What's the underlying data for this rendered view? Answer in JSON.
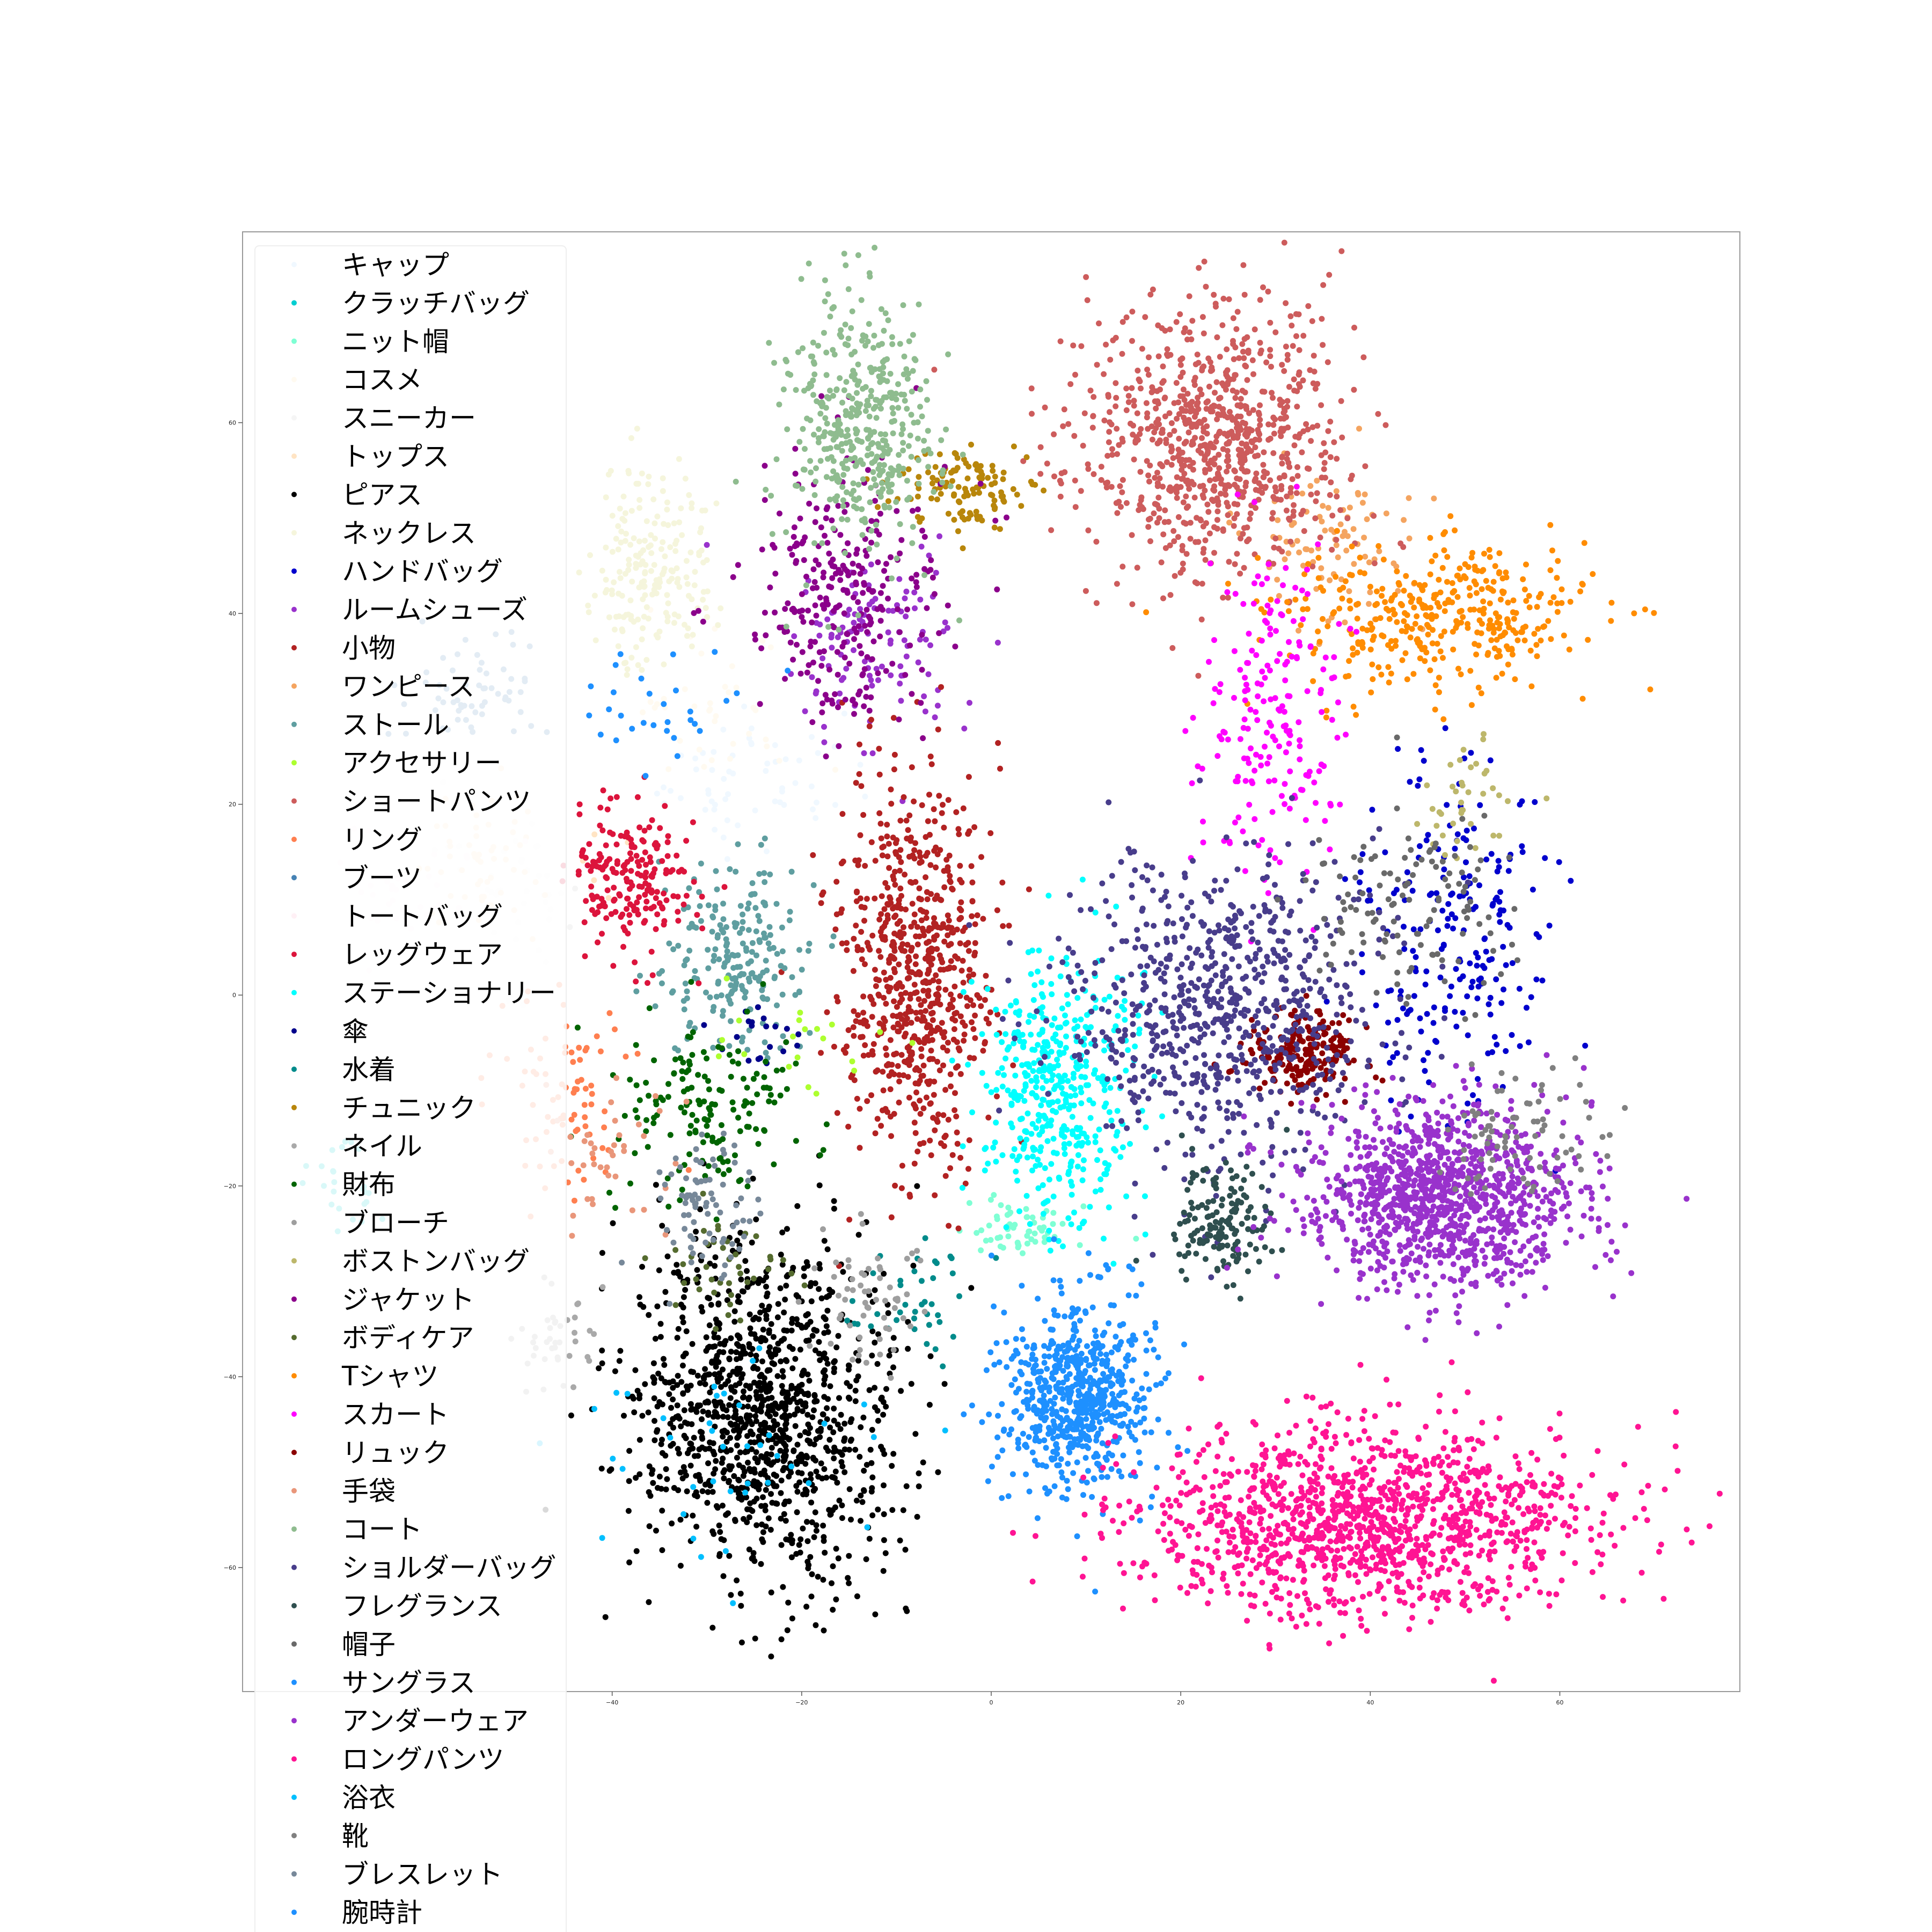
{
  "chart_data": {
    "type": "scatter",
    "title": "",
    "xlabel": "",
    "ylabel": "",
    "xlim": [
      -79,
      79
    ],
    "ylim": [
      -73,
      80
    ],
    "x_ticks": [
      -40,
      -20,
      0,
      20,
      40,
      60
    ],
    "y_ticks": [
      -60,
      -40,
      -20,
      0,
      20,
      40,
      60
    ],
    "x_tick_labels": [
      "−40",
      "−20",
      "0",
      "20",
      "40",
      "60"
    ],
    "y_tick_labels": [
      "−60",
      "−40",
      "−20",
      "0",
      "20",
      "40",
      "60"
    ],
    "grid": false,
    "legend_position": "upper-left",
    "series": [
      {
        "name": "キャップ",
        "color": "#f0f8ff",
        "cx": -25,
        "cy": 22,
        "sx": 6,
        "sy": 4,
        "n": 60
      },
      {
        "name": "クラッチバッグ",
        "color": "#00ced1",
        "cx": -68,
        "cy": -20,
        "sx": 3,
        "sy": 3,
        "n": 25
      },
      {
        "name": "ニット帽",
        "color": "#7fffd4",
        "cx": 3,
        "cy": -24,
        "sx": 3,
        "sy": 1.5,
        "n": 60
      },
      {
        "name": "コスメ",
        "color": "#fffaf0",
        "cx": -30,
        "cy": 30,
        "sx": 5,
        "sy": 5,
        "n": 40
      },
      {
        "name": "スニーカー",
        "color": "#f5f5f5",
        "cx": -50,
        "cy": 10,
        "sx": 4,
        "sy": 4,
        "n": 40
      },
      {
        "name": "トップス",
        "color": "#ffe4c4",
        "cx": -53,
        "cy": 14,
        "sx": 4,
        "sy": 4,
        "n": 60
      },
      {
        "name": "ピアス",
        "color": "#000000",
        "cx": -24,
        "cy": -44,
        "sx": 7,
        "sy": 9,
        "n": 1150
      },
      {
        "name": "ネックレス",
        "color": "#f5f5dc",
        "cx": -36,
        "cy": 45,
        "sx": 3,
        "sy": 5,
        "n": 200
      },
      {
        "name": "ハンドバッグ",
        "color": "#0000cd",
        "cx": 49,
        "cy": 6,
        "sx": 5,
        "sy": 9,
        "n": 220
      },
      {
        "name": "ルームシューズ",
        "color": "#9932cc",
        "cx": -12,
        "cy": 37,
        "sx": 5,
        "sy": 5,
        "n": 120
      },
      {
        "name": "小物",
        "color": "#b22222",
        "cx": -8,
        "cy": 2,
        "sx": 4,
        "sy": 10,
        "n": 700
      },
      {
        "name": "ワンピース",
        "color": "#f4a460",
        "cx": 36,
        "cy": 48,
        "sx": 4,
        "sy": 4,
        "n": 90
      },
      {
        "name": "ストール",
        "color": "#5f9ea0",
        "cx": -27,
        "cy": 4,
        "sx": 4,
        "sy": 5,
        "n": 220
      },
      {
        "name": "アクセサリー",
        "color": "#adff2f",
        "cx": -20,
        "cy": -5,
        "sx": 6,
        "sy": 4,
        "n": 20
      },
      {
        "name": "ショートパンツ",
        "color": "#cd5c5c",
        "cx": 23,
        "cy": 58,
        "sx": 7,
        "sy": 7,
        "n": 850
      },
      {
        "name": "リング",
        "color": "#ff7f50",
        "cx": -45,
        "cy": -10,
        "sx": 3,
        "sy": 6,
        "n": 80
      },
      {
        "name": "ブーツ",
        "color": "#4682b4",
        "cx": -54,
        "cy": 32,
        "sx": 4,
        "sy": 3,
        "n": 60
      },
      {
        "name": "トートバッグ",
        "color": "#fff0f5",
        "cx": -62,
        "cy": 10,
        "sx": 4,
        "sy": 4,
        "n": 40
      },
      {
        "name": "レッグウェア",
        "color": "#dc143c",
        "cx": -38,
        "cy": 12,
        "sx": 3,
        "sy": 4,
        "n": 200
      },
      {
        "name": "ステーショナリー",
        "color": "#00ffff",
        "cx": 7,
        "cy": -10,
        "sx": 4,
        "sy": 7,
        "n": 450
      },
      {
        "name": "傘",
        "color": "#00008b",
        "cx": -24,
        "cy": -4,
        "sx": 2,
        "sy": 2,
        "n": 20
      },
      {
        "name": "水着",
        "color": "#008b8b",
        "cx": -8,
        "cy": -32,
        "sx": 3,
        "sy": 3,
        "n": 40
      },
      {
        "name": "チュニック",
        "color": "#b8860b",
        "cx": -3,
        "cy": 53,
        "sx": 4,
        "sy": 2,
        "n": 120
      },
      {
        "name": "ネイル",
        "color": "#a9a9a9",
        "cx": -46,
        "cy": -36,
        "sx": 2,
        "sy": 3,
        "n": 40
      },
      {
        "name": "財布",
        "color": "#006400",
        "cx": -30,
        "cy": -12,
        "sx": 5,
        "sy": 5,
        "n": 160
      },
      {
        "name": "ブローチ",
        "color": "#9e9e9e",
        "cx": -13,
        "cy": -31,
        "sx": 3,
        "sy": 4,
        "n": 60
      },
      {
        "name": "ボストンバッグ",
        "color": "#bdb76b",
        "cx": 50,
        "cy": 20,
        "sx": 3,
        "sy": 3,
        "n": 40
      },
      {
        "name": "ジャケット",
        "color": "#8b008b",
        "cx": -15,
        "cy": 42,
        "sx": 5,
        "sy": 7,
        "n": 280
      },
      {
        "name": "ボディケア",
        "color": "#556b2f",
        "cx": -28,
        "cy": -28,
        "sx": 4,
        "sy": 3,
        "n": 40
      },
      {
        "name": "Tシャツ",
        "color": "#ff8c00",
        "cx": 47,
        "cy": 40,
        "sx": 8,
        "sy": 4,
        "n": 380
      },
      {
        "name": "スカート",
        "color": "#ff00ff",
        "cx": 29,
        "cy": 30,
        "sx": 4,
        "sy": 9,
        "n": 200
      },
      {
        "name": "リュック",
        "color": "#8b0000",
        "cx": 33,
        "cy": -6,
        "sx": 3,
        "sy": 2,
        "n": 200
      },
      {
        "name": "手袋",
        "color": "#e9967a",
        "cx": -40,
        "cy": -16,
        "sx": 3,
        "sy": 4,
        "n": 40
      },
      {
        "name": "コート",
        "color": "#8fbc8f",
        "cx": -14,
        "cy": 60,
        "sx": 4,
        "sy": 7,
        "n": 420
      },
      {
        "name": "ショルダーバッグ",
        "color": "#483d8b",
        "cx": 24,
        "cy": -2,
        "sx": 8,
        "sy": 8,
        "n": 750
      },
      {
        "name": "フレグランス",
        "color": "#2f4f4f",
        "cx": 24,
        "cy": -24,
        "sx": 3,
        "sy": 3,
        "n": 150
      },
      {
        "name": "帽子",
        "color": "#696969",
        "cx": 44,
        "cy": 10,
        "sx": 6,
        "sy": 5,
        "n": 120
      },
      {
        "name": "サングラス",
        "color": "#1e90ff",
        "cx": 9,
        "cy": -42,
        "sx": 4,
        "sy": 5,
        "n": 650
      },
      {
        "name": "アンダーウェア",
        "color": "#9932cc",
        "cx": 48,
        "cy": -21,
        "sx": 7,
        "sy": 5,
        "n": 1100
      },
      {
        "name": "ロングパンツ",
        "color": "#ff1493",
        "cx": 40,
        "cy": -55,
        "sx": 12,
        "sy": 5,
        "n": 1300
      },
      {
        "name": "浴衣",
        "color": "#00bfff",
        "cx": -28,
        "cy": -48,
        "sx": 8,
        "sy": 6,
        "n": 40
      },
      {
        "name": "靴",
        "color": "#808080",
        "cx": 55,
        "cy": -15,
        "sx": 4,
        "sy": 3,
        "n": 80
      },
      {
        "name": "ブレスレット",
        "color": "#778899",
        "cx": -30,
        "cy": -22,
        "sx": 3,
        "sy": 4,
        "n": 80
      },
      {
        "name": "腕時計",
        "color": "#1e90ff",
        "cx": -35,
        "cy": 30,
        "sx": 4,
        "sy": 3,
        "n": 30
      }
    ]
  }
}
